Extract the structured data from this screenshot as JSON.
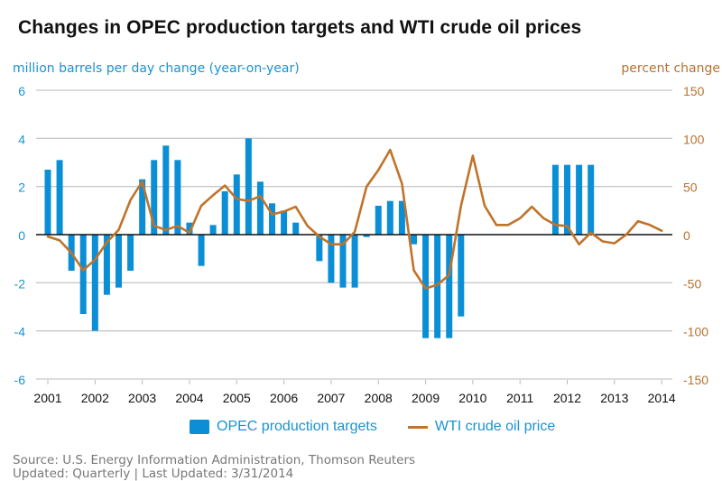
{
  "chart_data": {
    "type": "bar",
    "title": "Changes in OPEC production targets and WTI crude oil prices",
    "ylabel_left": "million barrels per day change (year-on-year)",
    "ylabel_right": "percent change",
    "xlabel": "",
    "ylim_left": [
      -6,
      6
    ],
    "ylim_right": [
      -150,
      150
    ],
    "yticks_left": [
      "6",
      "4",
      "2",
      "0",
      "-2",
      "-4",
      "-6"
    ],
    "yticks_right": [
      "150",
      "100",
      "50",
      "0",
      "-50",
      "-100",
      "-150"
    ],
    "xticks": [
      "2001",
      "2002",
      "2003",
      "2004",
      "2005",
      "2006",
      "2007",
      "2008",
      "2009",
      "2010",
      "2011",
      "2012",
      "2013",
      "2014"
    ],
    "x_unit": "quarter index from 2001 Q1",
    "grid": true,
    "legend_position": "bottom",
    "series": [
      {
        "name": "OPEC production targets",
        "type": "bar",
        "axis": "left",
        "color": "#0a8fd6",
        "values": [
          2.7,
          3.1,
          -1.5,
          -3.3,
          -4.0,
          -2.5,
          -2.2,
          -1.5,
          2.3,
          3.1,
          3.7,
          3.1,
          0.5,
          -1.3,
          0.4,
          1.8,
          2.5,
          4.0,
          2.2,
          1.3,
          1.0,
          0.5,
          0,
          -1.1,
          -2.0,
          -2.2,
          -2.2,
          -0.1,
          1.2,
          1.4,
          1.4,
          -0.4,
          -4.3,
          -4.3,
          -4.3,
          -3.4,
          0,
          0,
          0,
          0,
          0,
          0,
          0,
          2.9,
          2.9,
          2.9,
          2.9,
          0,
          0,
          0,
          0,
          0,
          0
        ]
      },
      {
        "name": "WTI crude oil price",
        "type": "line",
        "axis": "right",
        "color": "#c0732a",
        "values": [
          -2,
          -6,
          -19,
          -37,
          -26,
          -8,
          5,
          36,
          55,
          9,
          5,
          9,
          2,
          30,
          41,
          51,
          37,
          35,
          40,
          21,
          24,
          29,
          9,
          -2,
          -10,
          -10,
          3,
          50,
          67,
          88,
          53,
          -37,
          -56,
          -52,
          -42,
          30,
          82,
          30,
          10,
          10,
          17,
          29,
          17,
          10,
          9,
          -10,
          2,
          -7,
          -9,
          0,
          14,
          10,
          4
        ]
      }
    ]
  },
  "legend": {
    "bar_label": "OPEC production targets",
    "line_label": "WTI crude oil price"
  },
  "footer": {
    "source": "Source: U.S. Energy Information Administration, Thomson Reuters",
    "updated": "Updated: Quarterly | Last Updated: 3/31/2014"
  }
}
